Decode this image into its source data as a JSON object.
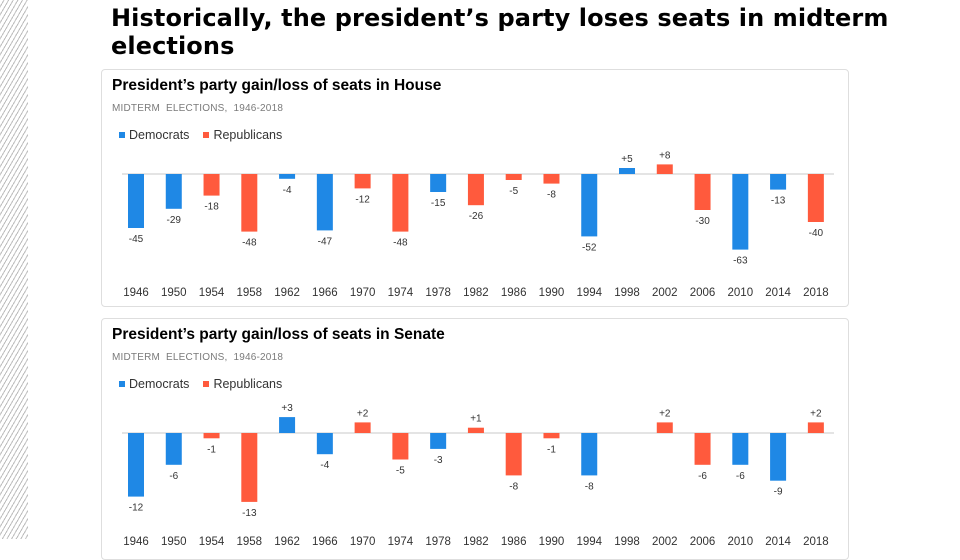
{
  "page": {
    "title": "Historically, the president’s party loses seats in midterm elections"
  },
  "colors": {
    "democrats": "#1f88e5",
    "republicans": "#ff5a3d",
    "axis": "#c8c8c8"
  },
  "chart_data": [
    {
      "type": "bar",
      "title": "President’s party gain/loss of seats in House",
      "subtitle": "MIDTERM   ELECTIONS,   1946-2018",
      "legend": [
        "Democrats",
        "Republicans"
      ],
      "legend_position": "top-left",
      "grid": false,
      "categories": [
        "1946",
        "1950",
        "1954",
        "1958",
        "1962",
        "1966",
        "1970",
        "1974",
        "1978",
        "1982",
        "1986",
        "1990",
        "1994",
        "1998",
        "2002",
        "2006",
        "2010",
        "2014",
        "2018"
      ],
      "values": [
        -45,
        -29,
        -18,
        -48,
        -4,
        -47,
        -12,
        -48,
        -15,
        -26,
        -5,
        -8,
        -52,
        5,
        8,
        -30,
        -63,
        -13,
        -40
      ],
      "labels": [
        "-45",
        "-29",
        "-18",
        "-48",
        "-4",
        "-47",
        "-12",
        "-48",
        "-15",
        "-26",
        "-5",
        "-8",
        "-52",
        "+5",
        "+8",
        "-30",
        "-63",
        "-13",
        "-40"
      ],
      "party": [
        "Democrats",
        "Democrats",
        "Republicans",
        "Republicans",
        "Democrats",
        "Democrats",
        "Republicans",
        "Republicans",
        "Democrats",
        "Republicans",
        "Republicans",
        "Republicans",
        "Democrats",
        "Democrats",
        "Republicans",
        "Republicans",
        "Democrats",
        "Democrats",
        "Republicans"
      ],
      "ylim": [
        -65,
        10
      ]
    },
    {
      "type": "bar",
      "title": "President’s party gain/loss of seats in Senate",
      "subtitle": "MIDTERM   ELECTIONS,   1946-2018",
      "legend": [
        "Democrats",
        "Republicans"
      ],
      "legend_position": "top-left",
      "grid": false,
      "categories": [
        "1946",
        "1950",
        "1954",
        "1958",
        "1962",
        "1966",
        "1970",
        "1974",
        "1978",
        "1982",
        "1986",
        "1990",
        "1994",
        "1998",
        "2002",
        "2006",
        "2010",
        "2014",
        "2018"
      ],
      "values": [
        -12,
        -6,
        -1,
        -13,
        3,
        -4,
        2,
        -5,
        -3,
        1,
        -8,
        -1,
        -8,
        0,
        2,
        -6,
        -6,
        -9,
        2
      ],
      "labels": [
        "-12",
        "-6",
        "-1",
        "-13",
        "+3",
        "-4",
        "+2",
        "-5",
        "-3",
        "+1",
        "-8",
        "-1",
        "-8",
        "",
        "+2",
        "-6",
        "-6",
        "-9",
        "+2"
      ],
      "party": [
        "Democrats",
        "Democrats",
        "Republicans",
        "Republicans",
        "Democrats",
        "Democrats",
        "Republicans",
        "Republicans",
        "Democrats",
        "Republicans",
        "Republicans",
        "Republicans",
        "Democrats",
        "Democrats",
        "Republicans",
        "Republicans",
        "Democrats",
        "Democrats",
        "Republicans"
      ],
      "ylim": [
        -14,
        4
      ]
    }
  ]
}
